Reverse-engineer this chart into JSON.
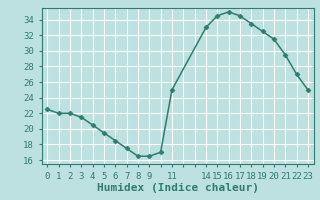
{
  "x": [
    0,
    1,
    2,
    3,
    4,
    5,
    6,
    7,
    8,
    9,
    10,
    11,
    14,
    15,
    16,
    17,
    18,
    19,
    20,
    21,
    22,
    23
  ],
  "y": [
    22.5,
    22.0,
    22.0,
    21.5,
    20.5,
    19.5,
    18.5,
    17.5,
    16.5,
    16.5,
    17.0,
    25.0,
    33.0,
    34.5,
    35.0,
    34.5,
    33.5,
    32.5,
    31.5,
    29.5,
    27.0,
    25.0
  ],
  "line_color": "#2e7d6e",
  "marker": "D",
  "marker_size": 2.5,
  "bg_color": "#bde0e0",
  "grid_color": "#ffffff",
  "xlabel": "Humidex (Indice chaleur)",
  "xlim": [
    -0.5,
    23.5
  ],
  "ylim": [
    15.5,
    35.5
  ],
  "yticks": [
    16,
    18,
    20,
    22,
    24,
    26,
    28,
    30,
    32,
    34
  ],
  "xtick_labels": [
    "0",
    "1",
    "2",
    "3",
    "4",
    "5",
    "6",
    "7",
    "8",
    "9",
    "",
    "11",
    "",
    "",
    "14",
    "15",
    "16",
    "17",
    "18",
    "19",
    "20",
    "21",
    "22",
    "23"
  ],
  "xtick_positions": [
    0,
    1,
    2,
    3,
    4,
    5,
    6,
    7,
    8,
    9,
    10,
    11,
    12,
    13,
    14,
    15,
    16,
    17,
    18,
    19,
    20,
    21,
    22,
    23
  ],
  "tick_fontsize": 6.5,
  "xlabel_fontsize": 8.0,
  "linewidth": 1.1
}
